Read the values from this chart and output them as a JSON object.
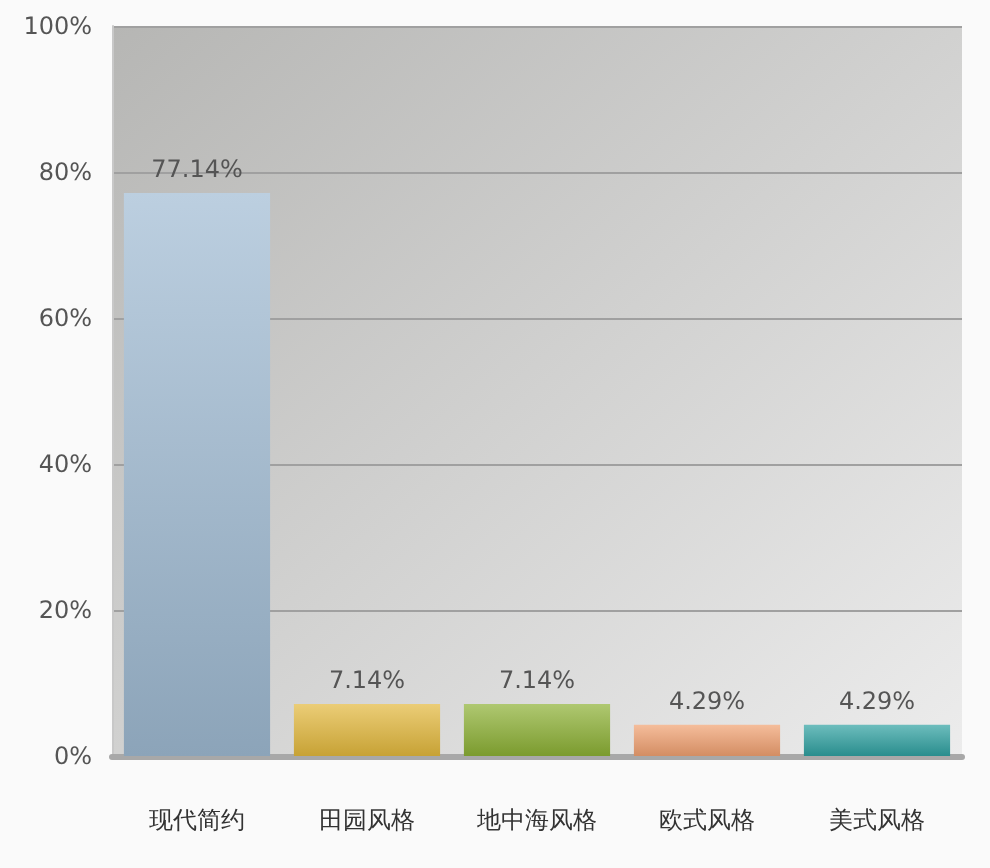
{
  "chart_data": {
    "type": "bar",
    "categories": [
      "现代简约",
      "田园风格",
      "地中海风格",
      "欧式风格",
      "美式风格"
    ],
    "values": [
      77.14,
      7.14,
      7.14,
      4.29,
      4.29
    ],
    "value_labels": [
      "77.14%",
      "7.14%",
      "7.14%",
      "4.29%",
      "4.29%"
    ],
    "colors": [
      "#9fbad2",
      "#e2b83c",
      "#8cb034",
      "#f0a070",
      "#2fa0a0"
    ],
    "ylim": [
      0,
      100
    ],
    "yticks": [
      {
        "value": 0,
        "label": "0%"
      },
      {
        "value": 20,
        "label": "20%"
      },
      {
        "value": 40,
        "label": "40%"
      },
      {
        "value": 60,
        "label": "60%"
      },
      {
        "value": 80,
        "label": "80%"
      },
      {
        "value": 100,
        "label": "100%"
      }
    ],
    "grid": "y"
  }
}
